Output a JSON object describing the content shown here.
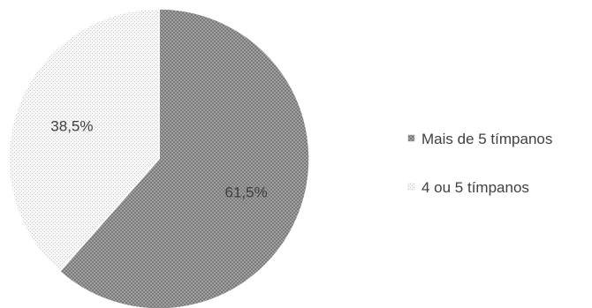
{
  "chart_data": {
    "type": "pie",
    "title": "",
    "slices": [
      {
        "label": "Mais de 5 tímpanos",
        "value": 61.5,
        "display": "61,5%",
        "color": "#8c8c8c"
      },
      {
        "label": "4 ou 5 tímpanos",
        "value": 38.5,
        "display": "38,5%",
        "color": "#e6e6e6"
      }
    ],
    "legend_position": "right",
    "start_angle": "12 o'clock",
    "direction": "clockwise"
  }
}
